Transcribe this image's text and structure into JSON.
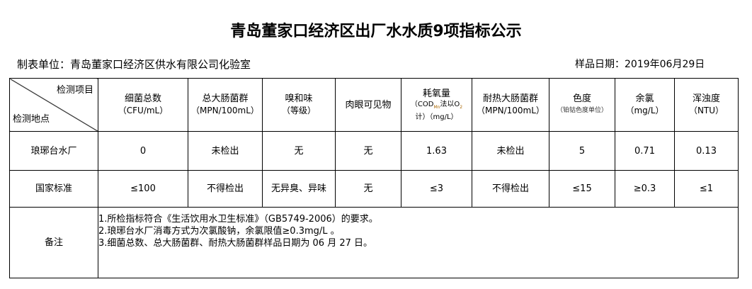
{
  "title": "青岛董家口经济区出厂水水质9项指标公示",
  "unit": "制表单位：青岛董家口经济区供水有限公司化验室",
  "sample_date": "样品日期：2019年06月29日",
  "header": {
    "corner_top": "检测项目",
    "corner_bottom": "检测地点",
    "cols": [
      {
        "name": "细菌总数",
        "unit": "（CFU/mL）"
      },
      {
        "name": "总大肠菌群",
        "unit": "（MPN/100mL）"
      },
      {
        "name": "嗅和味",
        "unit": "（等级）"
      },
      {
        "name": "肉眼可见物",
        "unit": ""
      },
      {
        "name": "耗氧量",
        "unit": "（COD",
        "unit2": "Mn",
        "unit3": "法以O",
        "unit4": "2",
        "unit5": "计）（mg/L）"
      },
      {
        "name": "耐热大肠菌群",
        "unit": "（MPN/100mL）"
      },
      {
        "name": "色度",
        "unit": "（铂钴色度单位）"
      },
      {
        "name": "余氯",
        "unit": "（mg/L）"
      },
      {
        "name": "浑浊度",
        "unit": "（NTU）"
      }
    ]
  },
  "rows": [
    {
      "site": "琅琊台水厂",
      "values": [
        "0",
        "未检出",
        "无",
        "无",
        "1.63",
        "未检出",
        "5",
        "0.71",
        "0.13"
      ]
    },
    {
      "site": "国家标准",
      "values": [
        "≤100",
        "不得检出",
        "无异臭、异味",
        "无",
        "≤3",
        "不得检出",
        "≤15",
        "≥0.3",
        "≤1"
      ]
    }
  ],
  "notes": {
    "label": "备注",
    "lines": [
      "1.所检指标符合《生活饮用水卫生标准》（GB5749-2006）的要求。",
      "2.琅琊台水厂消毒方式为次氯酸钠，余氯限值≥0.3mg/L 。",
      "3.细菌总数、总大肠菌群、耐热大肠菌群样品日期为 06 月 27 日。"
    ]
  }
}
